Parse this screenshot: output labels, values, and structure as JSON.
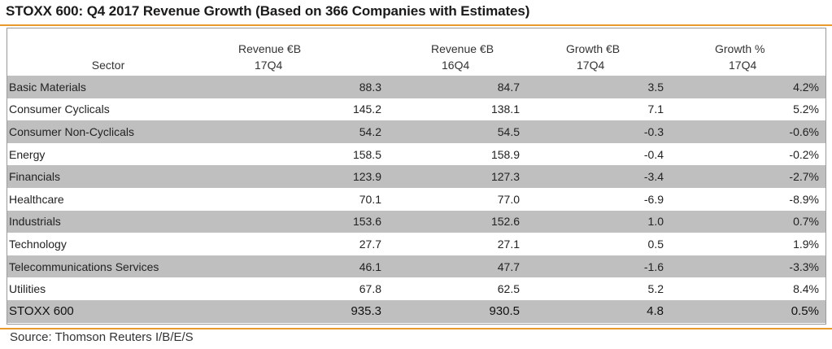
{
  "title": "STOXX 600: Q4 2017 Revenue Growth (Based on 366 Companies with Estimates)",
  "source": "Source: Thomson Reuters I/B/E/S",
  "colors": {
    "accent_rule": "#e89a2c",
    "row_shade": "#bfbfbf",
    "frame": "#9a9a9a"
  },
  "chart_data": {
    "type": "table",
    "title": "STOXX 600: Q4 2017 Revenue Growth (Based on 366 Companies with Estimates)",
    "columns": [
      {
        "label": "Sector",
        "sub": ""
      },
      {
        "label": "Revenue €B",
        "sub": "17Q4"
      },
      {
        "label": "Revenue €B",
        "sub": "16Q4"
      },
      {
        "label": "Growth €B",
        "sub": "17Q4"
      },
      {
        "label": "Growth %",
        "sub": "17Q4"
      }
    ],
    "rows": [
      {
        "sector": "Basic Materials",
        "rev_17q4": "88.3",
        "rev_16q4": "84.7",
        "growth_eur": "3.5",
        "growth_pct": "4.2%"
      },
      {
        "sector": "Consumer Cyclicals",
        "rev_17q4": "145.2",
        "rev_16q4": "138.1",
        "growth_eur": "7.1",
        "growth_pct": "5.2%"
      },
      {
        "sector": "Consumer Non-Cyclicals",
        "rev_17q4": "54.2",
        "rev_16q4": "54.5",
        "growth_eur": "-0.3",
        "growth_pct": "-0.6%"
      },
      {
        "sector": "Energy",
        "rev_17q4": "158.5",
        "rev_16q4": "158.9",
        "growth_eur": "-0.4",
        "growth_pct": "-0.2%"
      },
      {
        "sector": "Financials",
        "rev_17q4": "123.9",
        "rev_16q4": "127.3",
        "growth_eur": "-3.4",
        "growth_pct": "-2.7%"
      },
      {
        "sector": "Healthcare",
        "rev_17q4": "70.1",
        "rev_16q4": "77.0",
        "growth_eur": "-6.9",
        "growth_pct": "-8.9%"
      },
      {
        "sector": "Industrials",
        "rev_17q4": "153.6",
        "rev_16q4": "152.6",
        "growth_eur": "1.0",
        "growth_pct": "0.7%"
      },
      {
        "sector": "Technology",
        "rev_17q4": "27.7",
        "rev_16q4": "27.1",
        "growth_eur": "0.5",
        "growth_pct": "1.9%"
      },
      {
        "sector": "Telecommunications Services",
        "rev_17q4": "46.1",
        "rev_16q4": "47.7",
        "growth_eur": "-1.6",
        "growth_pct": "-3.3%"
      },
      {
        "sector": "Utilities",
        "rev_17q4": "67.8",
        "rev_16q4": "62.5",
        "growth_eur": "5.2",
        "growth_pct": "8.4%"
      }
    ],
    "total": {
      "sector": "STOXX 600",
      "rev_17q4": "935.3",
      "rev_16q4": "930.5",
      "growth_eur": "4.8",
      "growth_pct": "0.5%"
    }
  }
}
